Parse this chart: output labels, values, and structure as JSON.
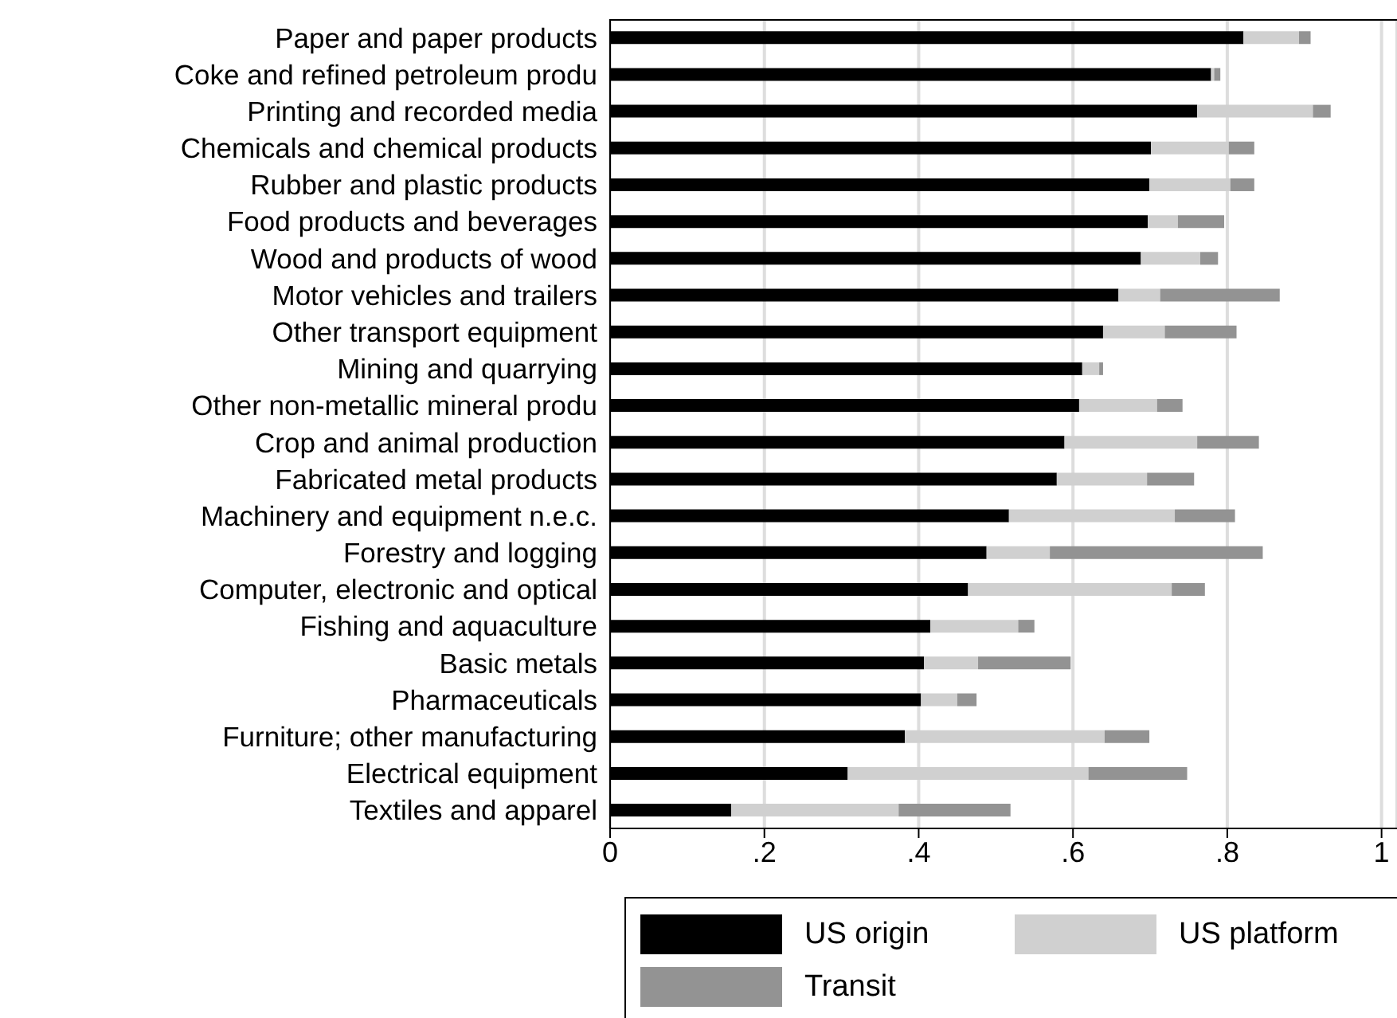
{
  "chart_data": {
    "type": "bar",
    "orientation": "horizontal",
    "stacked": true,
    "categories": [
      "Paper and paper products",
      "Coke and refined petroleum produ",
      "Printing and recorded media",
      "Chemicals and chemical products",
      "Rubber and plastic products",
      "Food products and beverages",
      "Wood and products of wood",
      "Motor vehicles and trailers",
      "Other transport equipment",
      "Mining and quarrying",
      "Other non-metallic mineral produ",
      "Crop and animal production",
      "Fabricated metal products",
      "Machinery and equipment n.e.c.",
      "Forestry and logging",
      "Computer, electronic and optical",
      "Fishing and aquaculture",
      "Basic metals",
      "Pharmaceuticals",
      "Furniture; other manufacturing",
      "Electrical equipment",
      "Textiles and apparel"
    ],
    "series": [
      {
        "name": "US origin",
        "color": "#000000",
        "values": [
          0.821,
          0.779,
          0.761,
          0.701,
          0.699,
          0.697,
          0.688,
          0.659,
          0.639,
          0.612,
          0.608,
          0.589,
          0.579,
          0.517,
          0.488,
          0.464,
          0.415,
          0.407,
          0.403,
          0.382,
          0.308,
          0.157
        ]
      },
      {
        "name": "US platform",
        "color": "#d0d0d0",
        "values": [
          0.072,
          0.004,
          0.15,
          0.101,
          0.105,
          0.039,
          0.077,
          0.054,
          0.08,
          0.022,
          0.101,
          0.172,
          0.117,
          0.215,
          0.082,
          0.264,
          0.114,
          0.07,
          0.047,
          0.259,
          0.312,
          0.217
        ]
      },
      {
        "name": "Transit",
        "color": "#939393",
        "values": [
          0.015,
          0.008,
          0.023,
          0.033,
          0.031,
          0.06,
          0.023,
          0.155,
          0.093,
          0.005,
          0.033,
          0.08,
          0.061,
          0.078,
          0.276,
          0.043,
          0.021,
          0.12,
          0.025,
          0.058,
          0.128,
          0.145
        ]
      }
    ],
    "xlim": [
      0,
      1.02
    ],
    "xticks": [
      {
        "value": 0,
        "label": "0"
      },
      {
        "value": 0.2,
        "label": ".2"
      },
      {
        "value": 0.4,
        "label": ".4"
      },
      {
        "value": 0.6,
        "label": ".6"
      },
      {
        "value": 0.8,
        "label": ".8"
      },
      {
        "value": 1,
        "label": "1"
      }
    ],
    "grid": "x",
    "legend": "bottom"
  }
}
